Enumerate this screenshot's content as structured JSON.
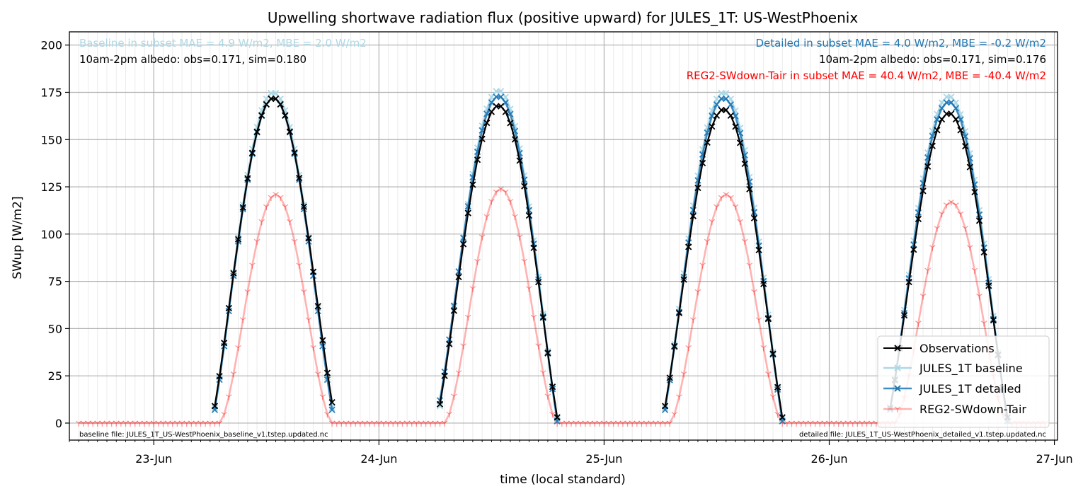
{
  "chart_data": {
    "type": "line",
    "title": "Upwelling shortwave radiation flux (positive upward) for JULES_1T: US-WestPhoenix",
    "xlabel": "time (local standard)",
    "ylabel": "SWup [W/m2]",
    "xlim": [
      "2025-06-22T15:00",
      "2025-06-27T00:20"
    ],
    "ylim": [
      -9,
      207
    ],
    "y_ticks": [
      0,
      25,
      50,
      75,
      100,
      125,
      150,
      175,
      200
    ],
    "x_ticks": [
      {
        "date": "2025-06-23",
        "label": "23-Jun"
      },
      {
        "date": "2025-06-24",
        "label": "24-Jun"
      },
      {
        "date": "2025-06-25",
        "label": "25-Jun"
      },
      {
        "date": "2025-06-26",
        "label": "26-Jun"
      },
      {
        "date": "2025-06-27",
        "label": "27-Jun"
      }
    ],
    "grid": true,
    "legend_position": "bottom-right",
    "annotations": {
      "baseline_stats": "Baseline in subset MAE = 4.9 W/m2, MBE = 2.0 W/m2",
      "baseline_albedo": "10am-2pm albedo: obs=0.171, sim=0.180",
      "detailed_stats": "Detailed in subset MAE = 4.0 W/m2, MBE = -0.2 W/m2",
      "detailed_albedo": "10am-2pm albedo: obs=0.171, sim=0.176",
      "reg2_stats": "REG2-SWdown-Tair in subset MAE = 40.4 W/m2, MBE = -40.4 W/m2",
      "baseline_file": "baseline file: JULES_1T_US-WestPhoenix_baseline_v1.tstep.updated.nc",
      "detailed_file": "detailed file: JULES_1T_US-WestPhoenix_detailed_v1.tstep.updated.nc"
    },
    "series": [
      {
        "name": "Observations",
        "color": "#000000",
        "marker": "x",
        "days": [
          {
            "date": "2025-06-23",
            "start_hour": 6.5,
            "end_hour": 19.0,
            "step_hours": 0.5,
            "peak": 172,
            "start_value": 9,
            "end_value": 11
          },
          {
            "date": "2025-06-24",
            "start_hour": 6.5,
            "end_hour": 19.0,
            "step_hours": 0.5,
            "peak": 168,
            "start_value": 10,
            "end_value": 3
          },
          {
            "date": "2025-06-25",
            "start_hour": 6.5,
            "end_hour": 19.0,
            "step_hours": 0.5,
            "peak": 166,
            "start_value": 9,
            "end_value": 3
          },
          {
            "date": "2025-06-26",
            "start_hour": 6.5,
            "end_hour": 19.0,
            "step_hours": 0.5,
            "peak": 164,
            "start_value": 8,
            "end_value": 3
          }
        ]
      },
      {
        "name": "JULES_1T baseline",
        "color": "#add8e6",
        "marker": "x",
        "days": [
          {
            "date": "2025-06-23",
            "start_hour": 6.5,
            "end_hour": 19.0,
            "step_hours": 0.5,
            "peak": 175,
            "start_value": 8,
            "end_value": 8
          },
          {
            "date": "2025-06-24",
            "start_hour": 6.5,
            "end_hour": 19.0,
            "step_hours": 0.5,
            "peak": 176,
            "start_value": 9,
            "end_value": 2
          },
          {
            "date": "2025-06-25",
            "start_hour": 6.5,
            "end_hour": 19.0,
            "step_hours": 0.5,
            "peak": 175,
            "start_value": 8,
            "end_value": 2
          },
          {
            "date": "2025-06-26",
            "start_hour": 6.5,
            "end_hour": 19.0,
            "step_hours": 0.5,
            "peak": 173,
            "start_value": 8,
            "end_value": 2
          }
        ]
      },
      {
        "name": "JULES_1T detailed",
        "color": "#1f77b4",
        "marker": "x",
        "days": [
          {
            "date": "2025-06-23",
            "start_hour": 6.5,
            "end_hour": 19.0,
            "step_hours": 0.5,
            "peak": 172,
            "start_value": 7,
            "end_value": 7
          },
          {
            "date": "2025-06-24",
            "start_hour": 6.5,
            "end_hour": 19.0,
            "step_hours": 0.5,
            "peak": 173,
            "start_value": 12,
            "end_value": 1
          },
          {
            "date": "2025-06-25",
            "start_hour": 6.5,
            "end_hour": 19.0,
            "step_hours": 0.5,
            "peak": 172,
            "start_value": 7,
            "end_value": 1
          },
          {
            "date": "2025-06-26",
            "start_hour": 6.5,
            "end_hour": 19.0,
            "step_hours": 0.5,
            "peak": 170,
            "start_value": 7,
            "end_value": 1
          }
        ]
      },
      {
        "name": "REG2-SWdown-Tair",
        "color": "#ff0000",
        "opacity": 0.3,
        "marker": "tri",
        "range_start": "2025-06-22T16:00",
        "range_end": "2025-06-26T23:00",
        "step_hours": 0.5,
        "days": [
          {
            "date": "2025-06-23",
            "rise_hour": 7.0,
            "set_hour": 19.0,
            "peak": 121
          },
          {
            "date": "2025-06-24",
            "rise_hour": 7.0,
            "set_hour": 19.0,
            "peak": 124
          },
          {
            "date": "2025-06-25",
            "rise_hour": 7.0,
            "set_hour": 19.0,
            "peak": 121
          },
          {
            "date": "2025-06-26",
            "rise_hour": 7.0,
            "set_hour": 19.0,
            "peak": 117
          }
        ]
      }
    ]
  }
}
